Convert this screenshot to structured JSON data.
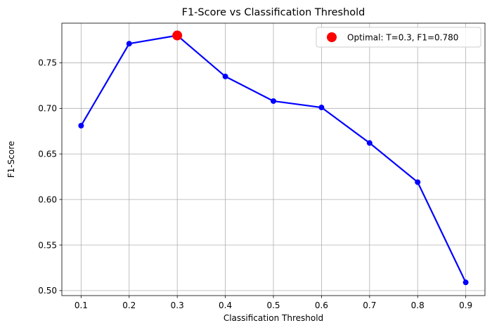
{
  "chart_data": {
    "type": "line",
    "title": "F1-Score vs Classification Threshold",
    "xlabel": "Classification Threshold",
    "ylabel": "F1-Score",
    "x": [
      0.1,
      0.2,
      0.3,
      0.4,
      0.5,
      0.6,
      0.7,
      0.8,
      0.9
    ],
    "x_tick_labels": [
      "0.1",
      "0.2",
      "0.3",
      "0.4",
      "0.5",
      "0.6",
      "0.7",
      "0.8",
      "0.9"
    ],
    "y_ticks": [
      0.5,
      0.55,
      0.6,
      0.65,
      0.7,
      0.75
    ],
    "y_tick_labels": [
      "0.50",
      "0.55",
      "0.60",
      "0.65",
      "0.70",
      "0.75"
    ],
    "xlim": [
      0.06,
      0.94
    ],
    "ylim": [
      0.4945,
      0.7935
    ],
    "grid": true,
    "series": [
      {
        "values": [
          0.681,
          0.771,
          0.78,
          0.735,
          0.708,
          0.701,
          0.662,
          0.619,
          0.509
        ],
        "color": "#0000ff",
        "marker": "circle"
      }
    ],
    "highlight": {
      "name": "Optimal: T=0.3, F1=0.780",
      "x": 0.3,
      "y": 0.78,
      "color": "#ff0000"
    },
    "legend_position": "top-right"
  }
}
